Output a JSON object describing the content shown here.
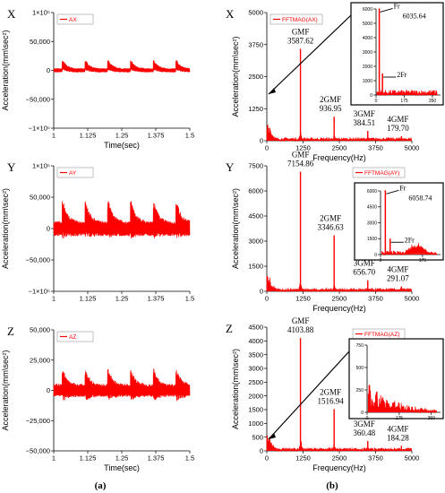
{
  "colors": {
    "series": "#ff0000",
    "axis": "#000000",
    "callout": "#000000",
    "background": "#ffffff"
  },
  "figure_labels": {
    "a": "(a)",
    "b": "(b)"
  },
  "chart_data": [
    {
      "id": "tx",
      "type": "line",
      "row_label": "X",
      "legend": "AX",
      "legend_placement": "top-left",
      "xlabel": "Time(sec)",
      "ylabel": "Acceleration(mm\\sec²)",
      "xlim": [
        1,
        1.5
      ],
      "ylim": [
        -100000,
        100000
      ],
      "x_ticks": [
        1,
        1.125,
        1.25,
        1.375,
        1.5
      ],
      "x_tick_labels": [
        "1",
        "1.125",
        "1.25",
        "1.375",
        "1.5"
      ],
      "y_ticks": [
        -100000,
        -50000,
        0,
        50000,
        100000
      ],
      "y_tick_labels": [
        "−1×10⁵",
        "−50,000",
        "0",
        "50,000",
        "1×10⁵"
      ],
      "signal": {
        "baseline": 0,
        "noise": 6000,
        "impulse_period": 0.0835,
        "impulse_first": 1.035,
        "impulse_amplitude": 17000,
        "impulse_width": 0.045,
        "sample_step": 0.0012
      }
    },
    {
      "id": "fx",
      "type": "line",
      "row_label": "X",
      "legend": "FFTMAG(AX)",
      "legend_placement": "top-left",
      "xlabel": "Frequency(Hz)",
      "ylabel": "Acceleration(mm\\sec²)",
      "xlim": [
        0,
        5000
      ],
      "ylim": [
        0,
        5000
      ],
      "x_ticks": [
        0,
        1250,
        2500,
        3750,
        5000
      ],
      "x_tick_labels": [
        "0",
        "1250",
        "2500",
        "3750",
        "5000"
      ],
      "y_ticks": [
        0,
        1250,
        2500,
        3750,
        5000
      ],
      "y_tick_labels": [
        "0",
        "1250",
        "2500",
        "3750",
        "5000"
      ],
      "peaks": [
        {
          "label": "GMF",
          "value_label": "3587.62",
          "freq": 1160,
          "amp": 3587.62
        },
        {
          "label": "2GMF",
          "value_label": "936.95",
          "freq": 2320,
          "amp": 936.95
        },
        {
          "label": "3GMF",
          "value_label": "384.51",
          "freq": 3480,
          "amp": 384.51
        },
        {
          "label": "4GMF",
          "value_label": "179.70",
          "freq": 4640,
          "amp": 179.7
        }
      ],
      "inset": {
        "xlim": [
          0,
          400
        ],
        "ylim": [
          0,
          6000
        ],
        "x_ticks": [
          0,
          175,
          350
        ],
        "x_tick_labels": [
          "0",
          "175",
          "350"
        ],
        "y_ticks": [
          0,
          1000,
          2000,
          3000,
          4000,
          5000,
          6000
        ],
        "y_tick_labels": [
          "0",
          "1000",
          "2000",
          "3000",
          "4000",
          "5000",
          "6000"
        ],
        "peaks": [
          {
            "label": "Fr",
            "value_label": "6035.64",
            "freq": 20,
            "amp": 6035.64
          },
          {
            "label": "2Fr",
            "value_label": "",
            "freq": 40,
            "amp": 1500
          }
        ]
      }
    },
    {
      "id": "ty",
      "type": "line",
      "row_label": "Y",
      "legend": "AY",
      "legend_placement": "top-left",
      "xlabel": "",
      "ylabel": "Acceleration(mm\\sec²)",
      "xlim": [
        1,
        1.5
      ],
      "ylim": [
        -100000,
        100000
      ],
      "x_ticks": [
        1,
        1.125,
        1.25,
        1.375,
        1.5
      ],
      "x_tick_labels": [
        "1",
        "1.125",
        "1.25",
        "1.375",
        "1.5"
      ],
      "y_ticks": [
        -100000,
        -50000,
        0,
        50000,
        100000
      ],
      "y_tick_labels": [
        "−1×10⁵",
        "−50,000",
        "0",
        "50,000",
        "1×10⁵"
      ],
      "signal": {
        "baseline": 0,
        "noise": 20000,
        "impulse_period": 0.0835,
        "impulse_first": 1.035,
        "impulse_amplitude": 28000,
        "impulse_width": 0.05,
        "sample_step": 0.0012
      }
    },
    {
      "id": "fy",
      "type": "line",
      "row_label": "Y",
      "legend": "FFTMAG(AY)",
      "legend_placement": "top-right",
      "xlabel": "Frequency(Hz)",
      "ylabel": "Acceleration(mm\\sec²)",
      "xlim": [
        0,
        5000
      ],
      "ylim": [
        0,
        7500
      ],
      "x_ticks": [
        0,
        1250,
        2500,
        3750,
        5000
      ],
      "x_tick_labels": [
        "0",
        "1250",
        "2500",
        "3750",
        "5000"
      ],
      "y_ticks": [
        0,
        1500,
        3000,
        4500,
        6000,
        7500
      ],
      "y_tick_labels": [
        "0",
        "1500",
        "3000",
        "4500",
        "6000",
        "7500"
      ],
      "peaks": [
        {
          "label": "GMF",
          "value_label": "7154.86",
          "freq": 1160,
          "amp": 7154.86
        },
        {
          "label": "2GMF",
          "value_label": "3346.63",
          "freq": 2320,
          "amp": 3346.63
        },
        {
          "label": "3GMF",
          "value_label": "656.70",
          "freq": 3480,
          "amp": 656.7
        },
        {
          "label": "4GMF",
          "value_label": "291.07",
          "freq": 4640,
          "amp": 291.07
        }
      ],
      "inset": {
        "xlim": [
          0,
          250
        ],
        "ylim": [
          0,
          6000
        ],
        "x_ticks": [
          0,
          175
        ],
        "x_tick_labels": [
          "0",
          "175"
        ],
        "y_ticks": [
          0,
          1500,
          3000,
          4500,
          6000
        ],
        "y_tick_labels": [
          "0",
          "1500",
          "3000",
          "4500",
          "6000"
        ],
        "peaks": [
          {
            "label": "Fr",
            "value_label": "6058.74",
            "freq": 20,
            "amp": 6058.74
          },
          {
            "label": "2Fr",
            "value_label": "",
            "freq": 40,
            "amp": 1500
          }
        ]
      }
    },
    {
      "id": "tz",
      "type": "line",
      "row_label": "Z",
      "legend": "AZ",
      "legend_placement": "top-left",
      "xlabel": "Time(sec)",
      "ylabel": "Acceleration(mm\\sec²)",
      "xlim": [
        1,
        1.5
      ],
      "ylim": [
        -50000,
        50000
      ],
      "x_ticks": [
        1,
        1.125,
        1.25,
        1.375,
        1.5
      ],
      "x_tick_labels": [
        "1",
        "1.125",
        "1.25",
        "1.375",
        "1.5"
      ],
      "y_ticks": [
        -50000,
        -25000,
        0,
        25000,
        50000
      ],
      "y_tick_labels": [
        "−50,000",
        "−25,000",
        "0",
        "25,000",
        "50,000"
      ],
      "signal": {
        "baseline": 0,
        "noise": 9000,
        "impulse_period": 0.0835,
        "impulse_first": 1.035,
        "impulse_amplitude": 9000,
        "impulse_width": 0.045,
        "sample_step": 0.0012
      }
    },
    {
      "id": "fz",
      "type": "line",
      "row_label": "Z",
      "legend": "FFTMAG(AZ)",
      "legend_placement": "top-right",
      "xlabel": "Frequency(Hz)",
      "ylabel": "Acceleration(mm\\sec²)",
      "xlim": [
        0,
        5000
      ],
      "ylim": [
        0,
        4500
      ],
      "x_ticks": [
        0,
        1250,
        2500,
        3750,
        5000
      ],
      "x_tick_labels": [
        "0",
        "1250",
        "2500",
        "3750",
        "5000"
      ],
      "y_ticks": [
        0,
        500,
        1000,
        1500,
        2000,
        2500,
        3000,
        3500,
        4000,
        4500
      ],
      "y_tick_labels": [
        "0",
        "500",
        "1000",
        "1500",
        "2000",
        "2500",
        "3000",
        "3500",
        "4000",
        "4500"
      ],
      "peaks": [
        {
          "label": "GMF",
          "value_label": "4103.88",
          "freq": 1160,
          "amp": 4103.88
        },
        {
          "label": "2GMF",
          "value_label": "1516.94",
          "freq": 2320,
          "amp": 1516.94
        },
        {
          "label": "3GMF",
          "value_label": "360.48",
          "freq": 3480,
          "amp": 360.48
        },
        {
          "label": "4GMF",
          "value_label": "184.28",
          "freq": 4640,
          "amp": 184.28
        }
      ],
      "inset": {
        "xlim": [
          0,
          400
        ],
        "ylim": [
          0,
          750
        ],
        "x_ticks": [
          0,
          175,
          350
        ],
        "x_tick_labels": [
          "0",
          "175",
          "350"
        ],
        "y_ticks": [
          0,
          250,
          500,
          750
        ],
        "y_tick_labels": [
          "0",
          "250",
          "500",
          "750"
        ],
        "peaks": []
      }
    }
  ]
}
